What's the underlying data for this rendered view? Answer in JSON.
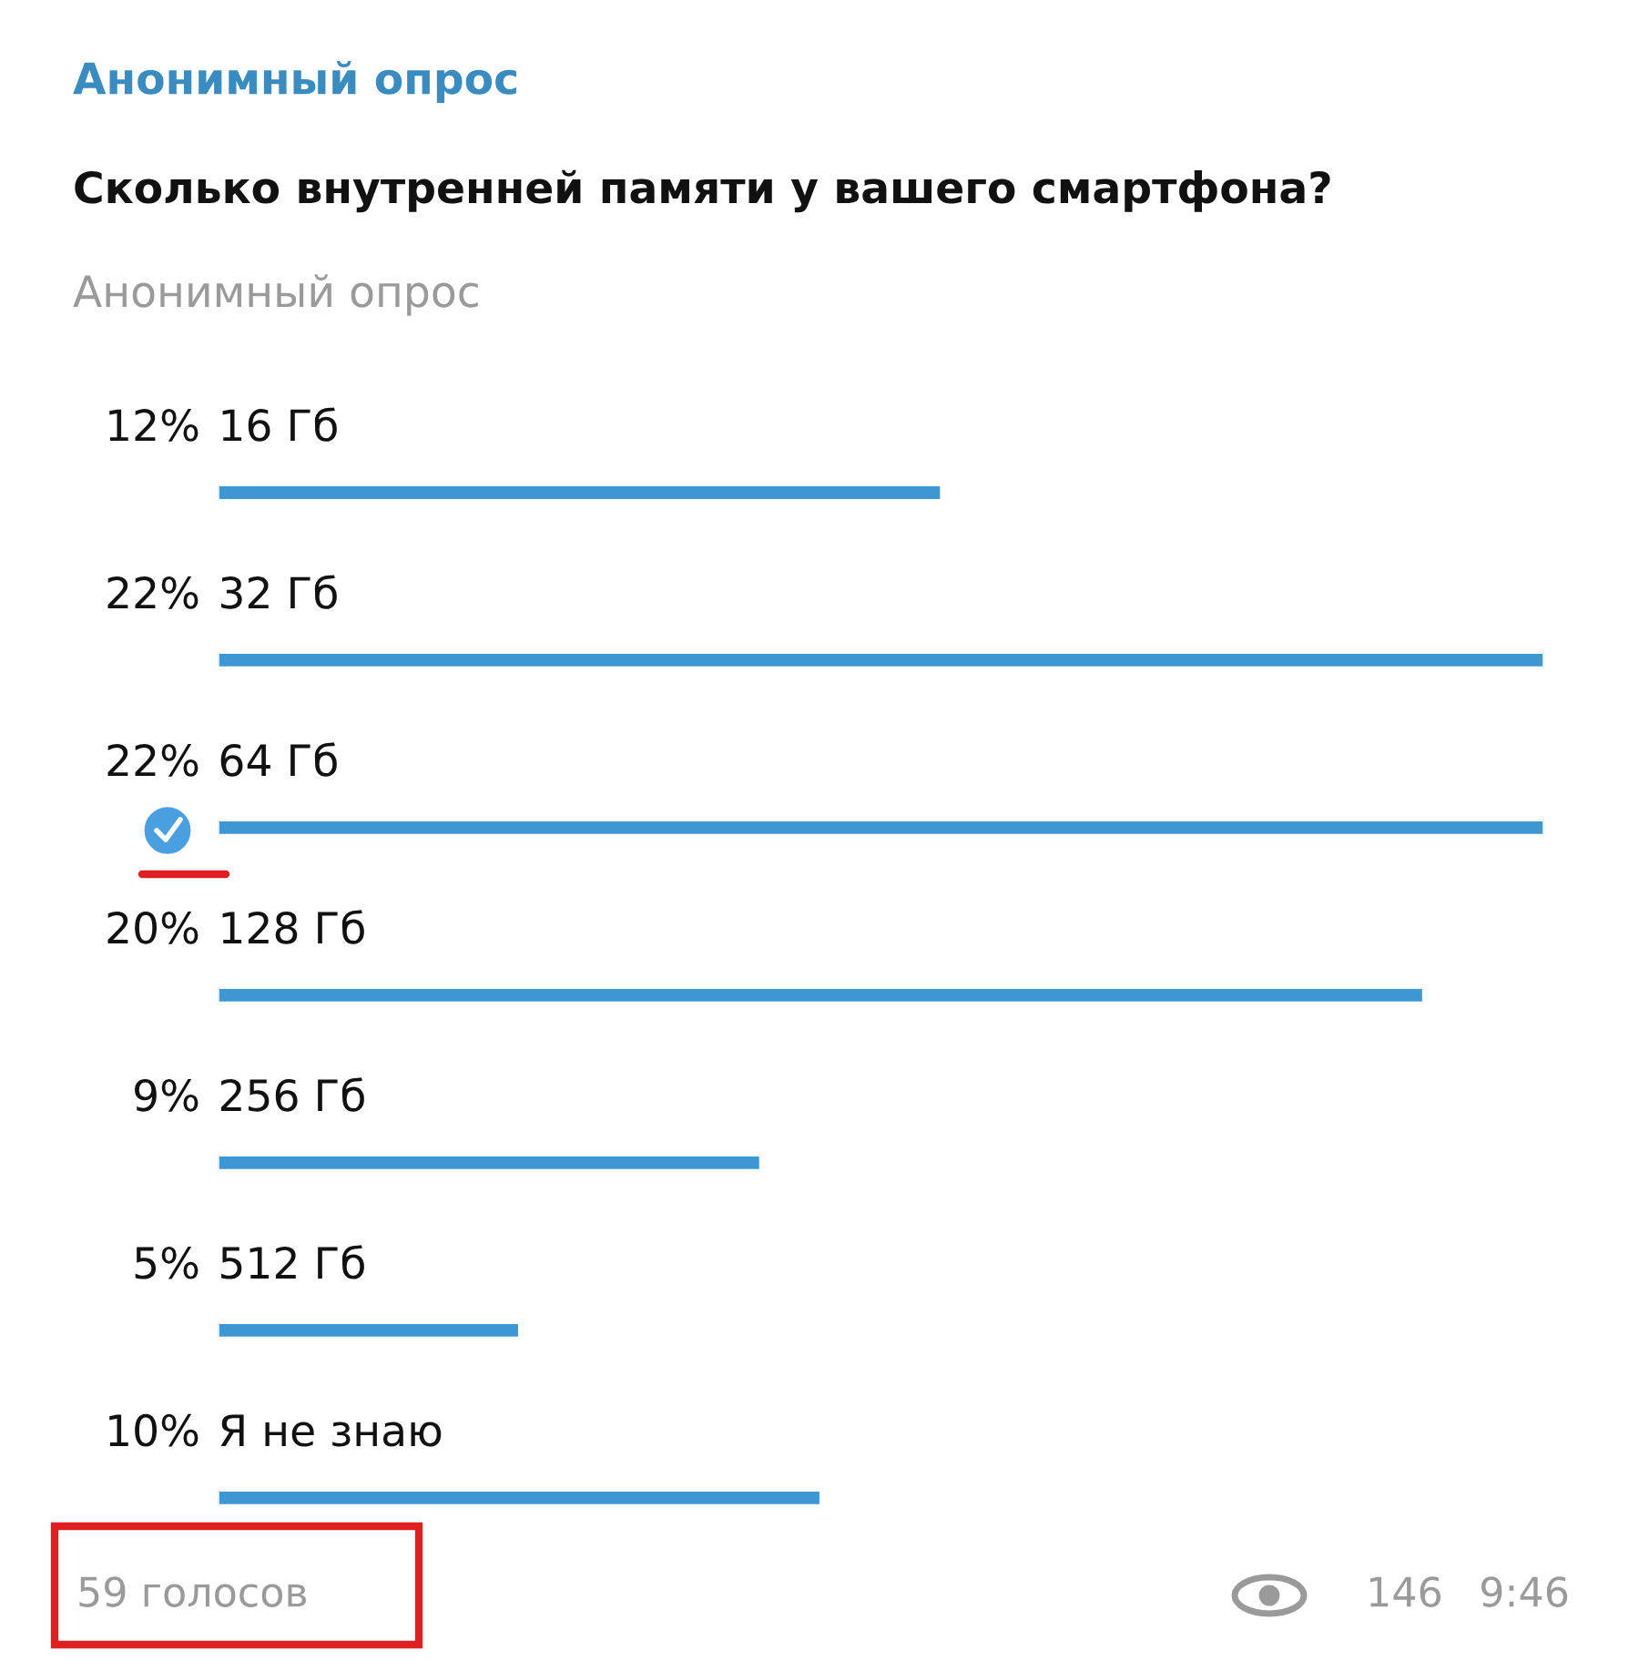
{
  "chart_data": {
    "type": "bar",
    "orientation": "horizontal",
    "title": "Анонимный опрос",
    "subtitle": "Сколько внутренней памяти у вашего смартфона?",
    "annotations": [
      "Анонимный опрос",
      "59 голосов",
      "146",
      "9:46"
    ],
    "categories": [
      "16 Гб",
      "32 Гб",
      "64 Гб",
      "128 Гб",
      "256 Гб",
      "512 Гб",
      "Я не знаю"
    ],
    "values": [
      12,
      22,
      22,
      20,
      9,
      5,
      10
    ],
    "value_labels": [
      "12%",
      "22%",
      "22%",
      "20%",
      "9%",
      "5%",
      "10%"
    ],
    "color": "#3d97d3"
  }
}
